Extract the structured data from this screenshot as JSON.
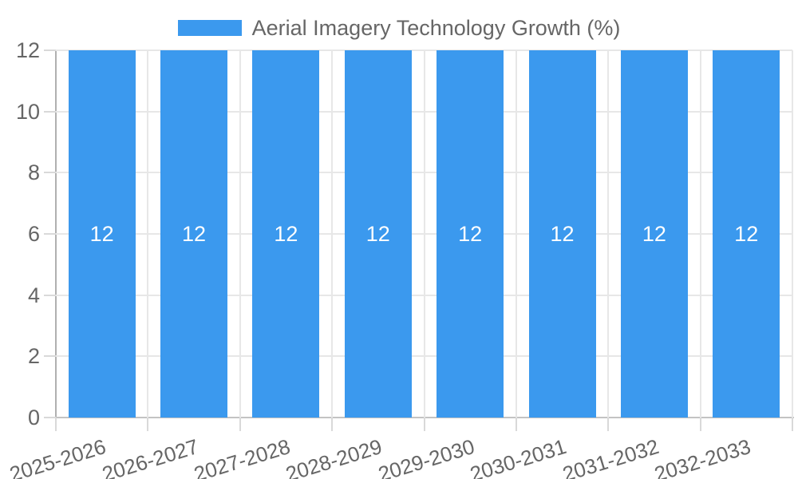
{
  "chart_data": {
    "type": "bar",
    "title": "Aerial Imagery Technology Growth (%)",
    "legend_position": "top",
    "categories": [
      "2025-2026",
      "2026-2027",
      "2027-2028",
      "2028-2029",
      "2029-2030",
      "2030-2031",
      "2031-2032",
      "2032-2033"
    ],
    "series": [
      {
        "name": "Aerial Imagery Technology Growth (%)",
        "values": [
          12,
          12,
          12,
          12,
          12,
          12,
          12,
          12
        ]
      }
    ],
    "bar_value_labels": [
      "12",
      "12",
      "12",
      "12",
      "12",
      "12",
      "12",
      "12"
    ],
    "xlabel": "",
    "ylabel": "",
    "ylim": [
      0,
      12
    ],
    "yticks": [
      0,
      2,
      4,
      6,
      8,
      10,
      12
    ],
    "grid": "horizontal-and-vertical",
    "colors": {
      "bar": "#3b99ee",
      "bar_label": "#ffffff",
      "axis_text": "#666666"
    }
  }
}
